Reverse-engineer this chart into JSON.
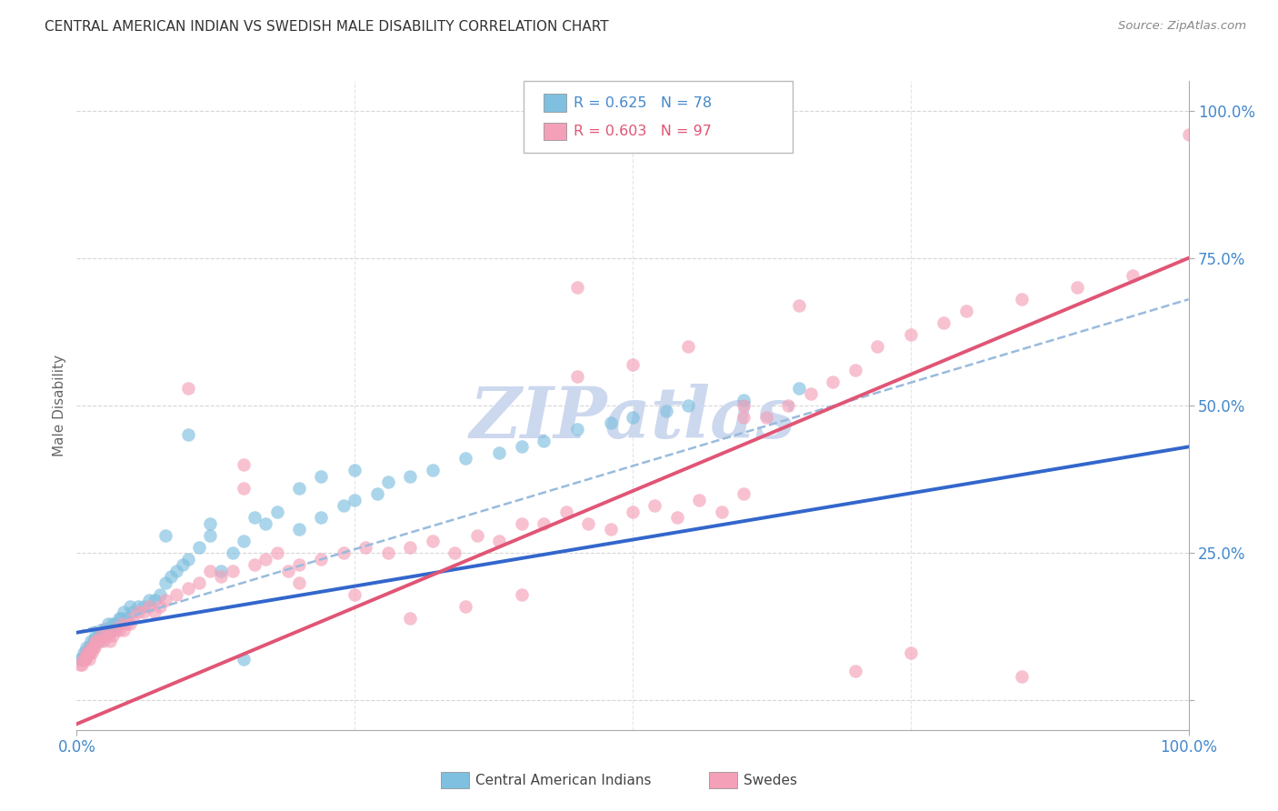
{
  "title": "CENTRAL AMERICAN INDIAN VS SWEDISH MALE DISABILITY CORRELATION CHART",
  "source": "Source: ZipAtlas.com",
  "ylabel": "Male Disability",
  "xlim": [
    0,
    1
  ],
  "ylim": [
    -0.05,
    1.05
  ],
  "x_tick_positions": [
    0.0,
    1.0
  ],
  "x_tick_labels": [
    "0.0%",
    "100.0%"
  ],
  "y_ticks_right": [
    0.0,
    0.25,
    0.5,
    0.75,
    1.0
  ],
  "y_tick_labels_right": [
    "",
    "25.0%",
    "50.0%",
    "75.0%",
    "100.0%"
  ],
  "blue_color": "#7fbfdf",
  "pink_color": "#f4a0b8",
  "blue_line_color": "#3366cc",
  "pink_line_color": "#e05575",
  "dashed_line_color": "#99bbdd",
  "title_color": "#333333",
  "axis_label_color": "#666666",
  "tick_color_blue": "#4488cc",
  "background_color": "#ffffff",
  "grid_color": "#cccccc",
  "watermark_color": "#ccd8ee",
  "blue_line": {
    "x0": 0.0,
    "x1": 1.0,
    "y0": 0.115,
    "y1": 0.43
  },
  "pink_line": {
    "x0": 0.0,
    "x1": 1.0,
    "y0": -0.04,
    "y1": 0.75
  },
  "dashed_line": {
    "x0": 0.0,
    "x1": 1.0,
    "y0": 0.115,
    "y1": 0.68
  },
  "blue_x": [
    0.003,
    0.005,
    0.006,
    0.007,
    0.008,
    0.009,
    0.01,
    0.011,
    0.012,
    0.013,
    0.014,
    0.015,
    0.016,
    0.017,
    0.018,
    0.019,
    0.02,
    0.021,
    0.022,
    0.024,
    0.025,
    0.026,
    0.027,
    0.028,
    0.03,
    0.032,
    0.033,
    0.035,
    0.038,
    0.04,
    0.042,
    0.045,
    0.048,
    0.05,
    0.055,
    0.06,
    0.065,
    0.07,
    0.075,
    0.08,
    0.085,
    0.09,
    0.095,
    0.1,
    0.11,
    0.12,
    0.13,
    0.14,
    0.15,
    0.17,
    0.18,
    0.2,
    0.22,
    0.24,
    0.25,
    0.27,
    0.28,
    0.3,
    0.32,
    0.35,
    0.38,
    0.4,
    0.42,
    0.45,
    0.48,
    0.5,
    0.53,
    0.55,
    0.6,
    0.65,
    0.08,
    0.1,
    0.12,
    0.16,
    0.2,
    0.22,
    0.25,
    0.15
  ],
  "blue_y": [
    0.07,
    0.07,
    0.08,
    0.07,
    0.08,
    0.09,
    0.08,
    0.09,
    0.09,
    0.1,
    0.09,
    0.1,
    0.1,
    0.11,
    0.1,
    0.11,
    0.11,
    0.1,
    0.12,
    0.11,
    0.12,
    0.11,
    0.12,
    0.13,
    0.12,
    0.13,
    0.12,
    0.13,
    0.14,
    0.14,
    0.15,
    0.14,
    0.16,
    0.15,
    0.16,
    0.16,
    0.17,
    0.17,
    0.18,
    0.2,
    0.21,
    0.22,
    0.23,
    0.24,
    0.26,
    0.28,
    0.22,
    0.25,
    0.27,
    0.3,
    0.32,
    0.29,
    0.31,
    0.33,
    0.34,
    0.35,
    0.37,
    0.38,
    0.39,
    0.41,
    0.42,
    0.43,
    0.44,
    0.46,
    0.47,
    0.48,
    0.49,
    0.5,
    0.51,
    0.53,
    0.28,
    0.45,
    0.3,
    0.31,
    0.36,
    0.38,
    0.39,
    0.07
  ],
  "pink_x": [
    0.003,
    0.005,
    0.006,
    0.007,
    0.008,
    0.009,
    0.01,
    0.011,
    0.012,
    0.013,
    0.014,
    0.015,
    0.016,
    0.017,
    0.018,
    0.02,
    0.022,
    0.024,
    0.026,
    0.028,
    0.03,
    0.032,
    0.035,
    0.038,
    0.04,
    0.042,
    0.045,
    0.048,
    0.05,
    0.055,
    0.06,
    0.065,
    0.07,
    0.075,
    0.08,
    0.09,
    0.1,
    0.11,
    0.12,
    0.13,
    0.14,
    0.15,
    0.16,
    0.17,
    0.18,
    0.19,
    0.2,
    0.22,
    0.24,
    0.26,
    0.28,
    0.3,
    0.32,
    0.34,
    0.36,
    0.38,
    0.4,
    0.42,
    0.44,
    0.46,
    0.48,
    0.5,
    0.52,
    0.54,
    0.56,
    0.58,
    0.6,
    0.62,
    0.64,
    0.66,
    0.68,
    0.7,
    0.72,
    0.75,
    0.78,
    0.8,
    0.85,
    0.9,
    0.95,
    1.0,
    0.3,
    0.35,
    0.4,
    0.45,
    0.5,
    0.55,
    0.6,
    0.65,
    0.7,
    0.75,
    0.2,
    0.25,
    0.15,
    0.1,
    0.85,
    0.6,
    0.45
  ],
  "pink_y": [
    0.06,
    0.06,
    0.07,
    0.07,
    0.07,
    0.08,
    0.08,
    0.07,
    0.08,
    0.09,
    0.08,
    0.09,
    0.09,
    0.1,
    0.1,
    0.1,
    0.11,
    0.1,
    0.11,
    0.11,
    0.1,
    0.11,
    0.12,
    0.12,
    0.13,
    0.12,
    0.13,
    0.13,
    0.14,
    0.15,
    0.15,
    0.16,
    0.15,
    0.16,
    0.17,
    0.18,
    0.19,
    0.2,
    0.22,
    0.21,
    0.22,
    0.36,
    0.23,
    0.24,
    0.25,
    0.22,
    0.23,
    0.24,
    0.25,
    0.26,
    0.25,
    0.26,
    0.27,
    0.25,
    0.28,
    0.27,
    0.3,
    0.3,
    0.32,
    0.3,
    0.29,
    0.32,
    0.33,
    0.31,
    0.34,
    0.32,
    0.35,
    0.48,
    0.5,
    0.52,
    0.54,
    0.56,
    0.6,
    0.62,
    0.64,
    0.66,
    0.68,
    0.7,
    0.72,
    0.96,
    0.14,
    0.16,
    0.18,
    0.55,
    0.57,
    0.6,
    0.48,
    0.67,
    0.05,
    0.08,
    0.2,
    0.18,
    0.4,
    0.53,
    0.04,
    0.5,
    0.7
  ]
}
